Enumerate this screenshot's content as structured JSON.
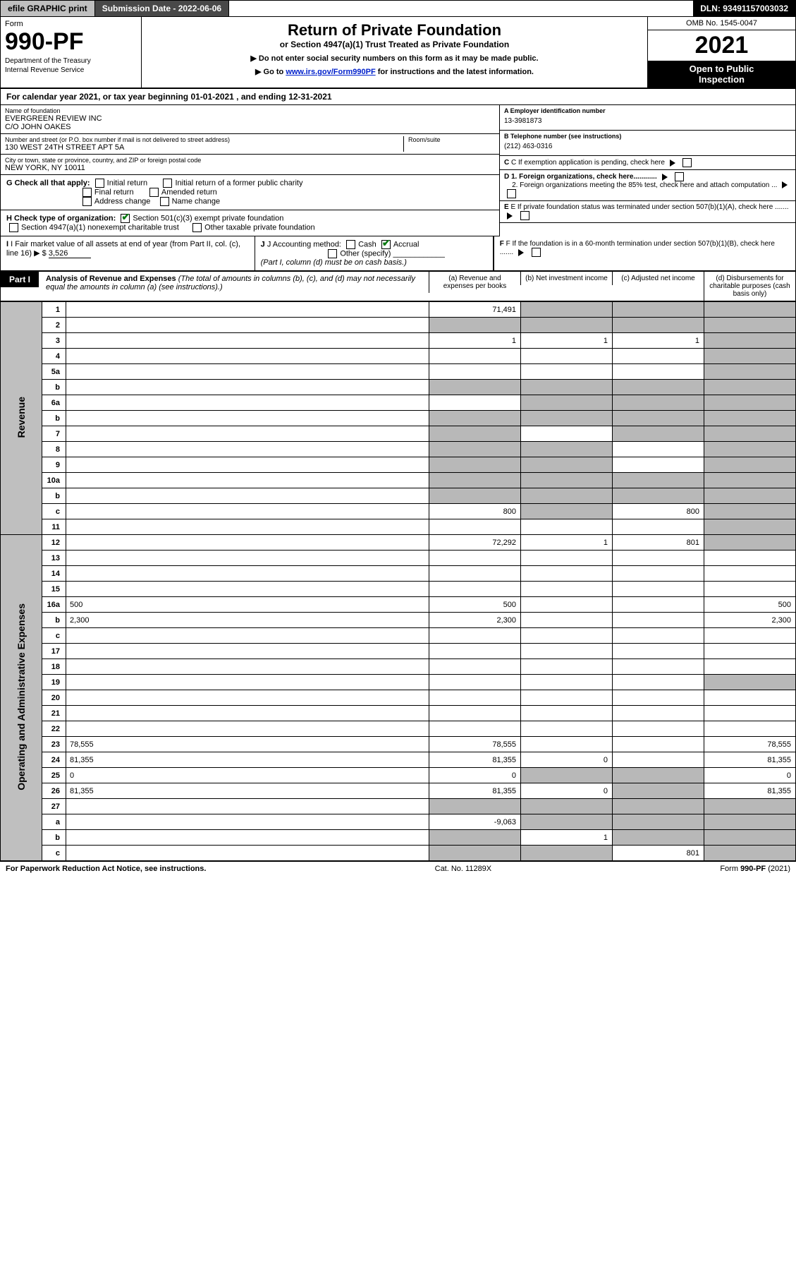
{
  "topbar": {
    "efile": "efile GRAPHIC print",
    "submission": "Submission Date - 2022-06-06",
    "dln": "DLN: 93491157003032"
  },
  "header": {
    "form": "Form",
    "formNo": "990-PF",
    "dept1": "Department of the Treasury",
    "dept2": "Internal Revenue Service",
    "title": "Return of Private Foundation",
    "subtitle": "or Section 4947(a)(1) Trust Treated as Private Foundation",
    "instr1": "▶ Do not enter social security numbers on this form as it may be made public.",
    "instr2": "▶ Go to ",
    "instrLink": "www.irs.gov/Form990PF",
    "instr3": " for instructions and the latest information.",
    "omb": "OMB No. 1545-0047",
    "year": "2021",
    "open1": "Open to Public",
    "open2": "Inspection"
  },
  "calYear": {
    "pre": "For calendar year 2021, or tax year beginning ",
    "begin": "01-01-2021",
    "mid": " , and ending ",
    "end": "12-31-2021"
  },
  "info": {
    "nameLbl": "Name of foundation",
    "name1": "EVERGREEN REVIEW INC",
    "name2": "C/O JOHN OAKES",
    "addrLbl": "Number and street (or P.O. box number if mail is not delivered to street address)",
    "addr": "130 WEST 24TH STREET APT 5A",
    "roomLbl": "Room/suite",
    "cityLbl": "City or town, state or province, country, and ZIP or foreign postal code",
    "city": "NEW YORK, NY  10011",
    "aLbl": "A Employer identification number",
    "a": "13-3981873",
    "bLbl": "B Telephone number (see instructions)",
    "b": "(212) 463-0316",
    "c": "C If exemption application is pending, check here",
    "d1": "D 1. Foreign organizations, check here............",
    "d2": "2. Foreign organizations meeting the 85% test, check here and attach computation ...",
    "e": "E  If private foundation status was terminated under section 507(b)(1)(A), check here .......",
    "f": "F  If the foundation is in a 60-month termination under section 507(b)(1)(B), check here ......."
  },
  "g": {
    "label": "G Check all that apply:",
    "opts": [
      "Initial return",
      "Final return",
      "Address change",
      "Initial return of a former public charity",
      "Amended return",
      "Name change"
    ]
  },
  "h": {
    "label": "H Check type of organization:",
    "opt1": "Section 501(c)(3) exempt private foundation",
    "opt2": "Section 4947(a)(1) nonexempt charitable trust",
    "opt3": "Other taxable private foundation"
  },
  "i": {
    "label": "I Fair market value of all assets at end of year (from Part II, col. (c), line 16) ▶ $ ",
    "val": "3,526"
  },
  "j": {
    "label": "J Accounting method:",
    "cash": "Cash",
    "accrual": "Accrual",
    "other": "Other (specify)",
    "note": "(Part I, column (d) must be on cash basis.)"
  },
  "part1": {
    "tag": "Part I",
    "title": "Analysis of Revenue and Expenses",
    "note": " (The total of amounts in columns (b), (c), and (d) may not necessarily equal the amounts in column (a) (see instructions).)",
    "colA": "(a)  Revenue and expenses per books",
    "colB": "(b)  Net investment income",
    "colC": "(c)  Adjusted net income",
    "colD": "(d)  Disbursements for charitable purposes (cash basis only)"
  },
  "sideLabels": {
    "rev": "Revenue",
    "exp": "Operating and Administrative Expenses"
  },
  "rows": [
    {
      "n": "1",
      "d": "",
      "a": "71,491",
      "b": "",
      "c": "",
      "sb": true,
      "sc": true,
      "sd": true
    },
    {
      "n": "2",
      "d": "",
      "a": "",
      "b": "",
      "c": "",
      "sa": true,
      "sb": true,
      "sc": true,
      "sd": true
    },
    {
      "n": "3",
      "d": "",
      "a": "1",
      "b": "1",
      "c": "1",
      "sd": true
    },
    {
      "n": "4",
      "d": "",
      "a": "",
      "b": "",
      "c": "",
      "sd": true
    },
    {
      "n": "5a",
      "d": "",
      "a": "",
      "b": "",
      "c": "",
      "sd": true
    },
    {
      "n": "b",
      "d": "",
      "a": "",
      "b": "",
      "c": "",
      "sa": true,
      "sb": true,
      "sc": true,
      "sd": true
    },
    {
      "n": "6a",
      "d": "",
      "a": "",
      "b": "",
      "c": "",
      "sb": true,
      "sc": true,
      "sd": true
    },
    {
      "n": "b",
      "d": "",
      "a": "",
      "b": "",
      "c": "",
      "sa": true,
      "sb": true,
      "sc": true,
      "sd": true
    },
    {
      "n": "7",
      "d": "",
      "a": "",
      "b": "",
      "c": "",
      "sa": true,
      "sc": true,
      "sd": true
    },
    {
      "n": "8",
      "d": "",
      "a": "",
      "b": "",
      "c": "",
      "sa": true,
      "sb": true,
      "sd": true
    },
    {
      "n": "9",
      "d": "",
      "a": "",
      "b": "",
      "c": "",
      "sa": true,
      "sb": true,
      "sd": true
    },
    {
      "n": "10a",
      "d": "",
      "a": "",
      "b": "",
      "c": "",
      "sa": true,
      "sb": true,
      "sc": true,
      "sd": true
    },
    {
      "n": "b",
      "d": "",
      "a": "",
      "b": "",
      "c": "",
      "sa": true,
      "sb": true,
      "sc": true,
      "sd": true
    },
    {
      "n": "c",
      "d": "",
      "a": "800",
      "b": "",
      "c": "800",
      "sb": true,
      "sd": true
    },
    {
      "n": "11",
      "d": "",
      "a": "",
      "b": "",
      "c": "",
      "sd": true
    },
    {
      "n": "12",
      "d": "",
      "a": "72,292",
      "b": "1",
      "c": "801",
      "sd": true
    },
    {
      "n": "13",
      "d": "",
      "a": "",
      "b": "",
      "c": ""
    },
    {
      "n": "14",
      "d": "",
      "a": "",
      "b": "",
      "c": ""
    },
    {
      "n": "15",
      "d": "",
      "a": "",
      "b": "",
      "c": ""
    },
    {
      "n": "16a",
      "d": "500",
      "a": "500",
      "b": "",
      "c": ""
    },
    {
      "n": "b",
      "d": "2,300",
      "a": "2,300",
      "b": "",
      "c": ""
    },
    {
      "n": "c",
      "d": "",
      "a": "",
      "b": "",
      "c": ""
    },
    {
      "n": "17",
      "d": "",
      "a": "",
      "b": "",
      "c": ""
    },
    {
      "n": "18",
      "d": "",
      "a": "",
      "b": "",
      "c": ""
    },
    {
      "n": "19",
      "d": "",
      "a": "",
      "b": "",
      "c": "",
      "sd": true
    },
    {
      "n": "20",
      "d": "",
      "a": "",
      "b": "",
      "c": ""
    },
    {
      "n": "21",
      "d": "",
      "a": "",
      "b": "",
      "c": ""
    },
    {
      "n": "22",
      "d": "",
      "a": "",
      "b": "",
      "c": ""
    },
    {
      "n": "23",
      "d": "78,555",
      "a": "78,555",
      "b": "",
      "c": ""
    },
    {
      "n": "24",
      "d": "81,355",
      "a": "81,355",
      "b": "0",
      "c": ""
    },
    {
      "n": "25",
      "d": "0",
      "a": "0",
      "b": "",
      "c": "",
      "sb": true,
      "sc": true
    },
    {
      "n": "26",
      "d": "81,355",
      "a": "81,355",
      "b": "0",
      "c": "",
      "sc": true
    },
    {
      "n": "27",
      "d": "",
      "a": "",
      "b": "",
      "c": "",
      "sa": true,
      "sb": true,
      "sc": true,
      "sd": true
    },
    {
      "n": "a",
      "d": "",
      "a": "-9,063",
      "b": "",
      "c": "",
      "sb": true,
      "sc": true,
      "sd": true
    },
    {
      "n": "b",
      "d": "",
      "a": "",
      "b": "1",
      "c": "",
      "sa": true,
      "sc": true,
      "sd": true
    },
    {
      "n": "c",
      "d": "",
      "a": "",
      "b": "",
      "c": "801",
      "sa": true,
      "sb": true,
      "sd": true
    }
  ],
  "footer": {
    "left": "For Paperwork Reduction Act Notice, see instructions.",
    "center": "Cat. No. 11289X",
    "right": "Form 990-PF (2021)"
  }
}
